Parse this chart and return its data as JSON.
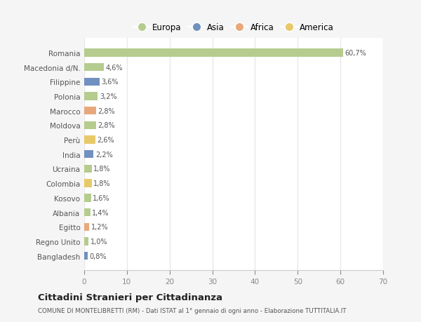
{
  "countries": [
    "Romania",
    "Macedonia d/N.",
    "Filippine",
    "Polonia",
    "Marocco",
    "Moldova",
    "Perù",
    "India",
    "Ucraina",
    "Colombia",
    "Kosovo",
    "Albania",
    "Egitto",
    "Regno Unito",
    "Bangladesh"
  ],
  "values": [
    60.7,
    4.6,
    3.6,
    3.2,
    2.8,
    2.8,
    2.6,
    2.2,
    1.8,
    1.8,
    1.6,
    1.4,
    1.2,
    1.0,
    0.8
  ],
  "labels": [
    "60,7%",
    "4,6%",
    "3,6%",
    "3,2%",
    "2,8%",
    "2,8%",
    "2,6%",
    "2,2%",
    "1,8%",
    "1,8%",
    "1,6%",
    "1,4%",
    "1,2%",
    "1,0%",
    "0,8%"
  ],
  "colors": [
    "#b5cc8e",
    "#b5cc8e",
    "#7090c0",
    "#b5cc8e",
    "#e8a87c",
    "#b5cc8e",
    "#e8c96a",
    "#7090c0",
    "#b5cc8e",
    "#e8c96a",
    "#b5cc8e",
    "#b5cc8e",
    "#e8a87c",
    "#b5cc8e",
    "#7090c0"
  ],
  "continent_colors": {
    "Europa": "#b5cc8e",
    "Asia": "#7090c0",
    "Africa": "#e8a87c",
    "America": "#e8c96a"
  },
  "xlim": [
    0,
    70
  ],
  "xticks": [
    0,
    10,
    20,
    30,
    40,
    50,
    60,
    70
  ],
  "title": "Cittadini Stranieri per Cittadinanza",
  "subtitle": "COMUNE DI MONTELIBRETTI (RM) - Dati ISTAT al 1° gennaio di ogni anno - Elaborazione TUTTITALIA.IT",
  "bg_color": "#f5f5f5",
  "plot_bg_color": "#ffffff",
  "grid_color": "#e8e8e8",
  "bar_height": 0.55
}
